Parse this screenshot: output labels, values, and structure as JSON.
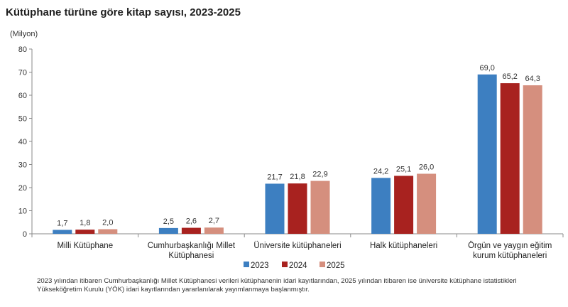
{
  "colors": {
    "s2023": "#3d7fc1",
    "s2024": "#a8221f",
    "s2025": "#d58f7e"
  },
  "chart_data": {
    "type": "bar",
    "title": "Kütüphane türüne göre kitap sayısı, 2023-2025",
    "unit_label": "(Milyon)",
    "xlabel": "",
    "ylabel": "",
    "ylim": [
      0,
      80
    ],
    "yticks": [
      "0",
      "10",
      "20",
      "30",
      "40",
      "50",
      "60",
      "70",
      "80"
    ],
    "categories": [
      [
        "Milli Kütüphane"
      ],
      [
        "Cumhurbaşkanlığı Millet",
        "Kütüphanesi"
      ],
      [
        "Üniversite kütüphaneleri"
      ],
      [
        "Halk kütüphaneleri"
      ],
      [
        "Örgün ve yaygın eğitim",
        "kurum kütüphaneleri"
      ]
    ],
    "series": [
      {
        "name": "2023",
        "values": [
          1.7,
          2.5,
          21.7,
          24.2,
          69.0
        ],
        "labels": [
          "1,7",
          "2,5",
          "21,7",
          "24,2",
          "69,0"
        ]
      },
      {
        "name": "2024",
        "values": [
          1.8,
          2.6,
          21.8,
          25.1,
          65.2
        ],
        "labels": [
          "1,8",
          "2,6",
          "21,8",
          "25,1",
          "65,2"
        ]
      },
      {
        "name": "2025",
        "values": [
          2.0,
          2.7,
          22.9,
          26.0,
          64.3
        ],
        "labels": [
          "2,0",
          "2,7",
          "22,9",
          "26,0",
          "64,3"
        ]
      }
    ],
    "legend_position": "bottom-center",
    "grid": false
  },
  "footnote": "2023 yılından itibaren Cumhurbaşkanlığı Millet Kütüphanesi verileri kütüphanenin idari kayıtlarından, 2025 yılından itibaren ise üniversite kütüphane istatistikleri Yükseköğretim Kurulu (YÖK) idari kayıtlarından yararlanılarak yayımlanmaya başlanmıştır."
}
